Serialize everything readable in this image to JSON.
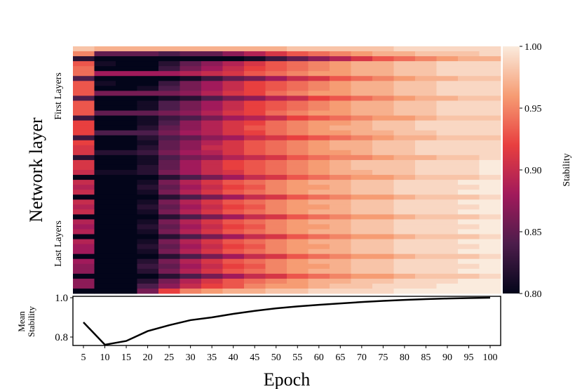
{
  "chart_data": [
    {
      "type": "heatmap",
      "ylabel": "Network layer",
      "y_group_labels": [
        "First Layers",
        "Last Layers"
      ],
      "colorbar": {
        "label": "Stability",
        "range": [
          0.8,
          1.0
        ],
        "ticks": [
          "0.80",
          "0.85",
          "0.90",
          "0.95",
          "1.00"
        ]
      },
      "colormap_stops": [
        "#03051a",
        "#4c1d4b",
        "#a11a5b",
        "#e83f3f",
        "#f69c73",
        "#faebdd"
      ],
      "x": [
        5,
        10,
        15,
        20,
        25,
        30,
        35,
        40,
        45,
        50,
        55,
        60,
        65,
        70,
        75,
        80,
        85,
        90,
        95,
        100
      ],
      "z": [
        [
          0.98,
          0.97,
          0.97,
          0.97,
          0.97,
          0.97,
          0.97,
          0.97,
          0.97,
          0.97,
          0.98,
          0.98,
          0.98,
          0.98,
          0.98,
          0.99,
          0.99,
          0.99,
          0.99,
          0.99
        ],
        [
          0.95,
          0.85,
          0.85,
          0.85,
          0.84,
          0.85,
          0.85,
          0.87,
          0.89,
          0.91,
          0.93,
          0.94,
          0.95,
          0.96,
          0.97,
          0.97,
          0.98,
          0.98,
          0.98,
          0.99
        ],
        [
          0.82,
          0.8,
          0.8,
          0.8,
          0.8,
          0.8,
          0.8,
          0.8,
          0.81,
          0.83,
          0.85,
          0.87,
          0.89,
          0.91,
          0.93,
          0.94,
          0.95,
          0.96,
          0.97,
          0.97
        ],
        [
          0.93,
          0.81,
          0.8,
          0.8,
          0.82,
          0.85,
          0.87,
          0.89,
          0.91,
          0.93,
          0.94,
          0.95,
          0.96,
          0.97,
          0.97,
          0.98,
          0.98,
          0.99,
          0.99,
          0.99
        ],
        [
          0.94,
          0.8,
          0.8,
          0.8,
          0.83,
          0.86,
          0.88,
          0.9,
          0.92,
          0.93,
          0.94,
          0.95,
          0.96,
          0.97,
          0.97,
          0.98,
          0.98,
          0.99,
          0.99,
          0.99
        ],
        [
          0.94,
          0.88,
          0.88,
          0.88,
          0.88,
          0.89,
          0.9,
          0.91,
          0.93,
          0.94,
          0.95,
          0.96,
          0.96,
          0.97,
          0.97,
          0.98,
          0.98,
          0.99,
          0.99,
          0.99
        ],
        [
          0.84,
          0.8,
          0.8,
          0.8,
          0.8,
          0.81,
          0.83,
          0.85,
          0.86,
          0.88,
          0.9,
          0.91,
          0.93,
          0.94,
          0.95,
          0.96,
          0.97,
          0.97,
          0.98,
          0.98
        ],
        [
          0.93,
          0.81,
          0.8,
          0.8,
          0.83,
          0.86,
          0.88,
          0.9,
          0.92,
          0.93,
          0.94,
          0.95,
          0.96,
          0.97,
          0.97,
          0.98,
          0.98,
          0.99,
          0.99,
          0.99
        ],
        [
          0.93,
          0.8,
          0.8,
          0.81,
          0.84,
          0.86,
          0.88,
          0.9,
          0.92,
          0.93,
          0.94,
          0.95,
          0.96,
          0.97,
          0.97,
          0.98,
          0.98,
          0.99,
          0.99,
          0.99
        ],
        [
          0.93,
          0.86,
          0.86,
          0.86,
          0.86,
          0.87,
          0.89,
          0.91,
          0.92,
          0.94,
          0.95,
          0.96,
          0.96,
          0.97,
          0.97,
          0.98,
          0.98,
          0.99,
          0.99,
          0.99
        ],
        [
          0.84,
          0.8,
          0.8,
          0.8,
          0.81,
          0.82,
          0.84,
          0.86,
          0.87,
          0.89,
          0.9,
          0.92,
          0.93,
          0.94,
          0.95,
          0.96,
          0.97,
          0.97,
          0.98,
          0.98
        ],
        [
          0.93,
          0.8,
          0.8,
          0.81,
          0.84,
          0.86,
          0.88,
          0.9,
          0.92,
          0.93,
          0.94,
          0.95,
          0.96,
          0.97,
          0.97,
          0.98,
          0.98,
          0.99,
          0.99,
          0.99
        ],
        [
          0.93,
          0.8,
          0.8,
          0.81,
          0.84,
          0.86,
          0.88,
          0.9,
          0.92,
          0.93,
          0.94,
          0.95,
          0.96,
          0.97,
          0.97,
          0.98,
          0.98,
          0.99,
          0.99,
          0.99
        ],
        [
          0.93,
          0.85,
          0.85,
          0.85,
          0.86,
          0.87,
          0.89,
          0.91,
          0.92,
          0.94,
          0.95,
          0.96,
          0.96,
          0.97,
          0.97,
          0.98,
          0.98,
          0.99,
          0.99,
          0.99
        ],
        [
          0.83,
          0.8,
          0.8,
          0.81,
          0.83,
          0.84,
          0.86,
          0.88,
          0.89,
          0.9,
          0.92,
          0.93,
          0.94,
          0.95,
          0.96,
          0.96,
          0.97,
          0.98,
          0.98,
          0.98
        ],
        [
          0.92,
          0.8,
          0.8,
          0.81,
          0.84,
          0.87,
          0.89,
          0.91,
          0.92,
          0.94,
          0.95,
          0.96,
          0.96,
          0.97,
          0.98,
          0.98,
          0.99,
          0.99,
          0.99,
          0.99
        ],
        [
          0.92,
          0.8,
          0.8,
          0.82,
          0.85,
          0.87,
          0.89,
          0.91,
          0.93,
          0.94,
          0.95,
          0.96,
          0.97,
          0.97,
          0.98,
          0.98,
          0.99,
          0.99,
          0.99,
          0.99
        ],
        [
          0.92,
          0.84,
          0.84,
          0.84,
          0.86,
          0.88,
          0.89,
          0.91,
          0.92,
          0.94,
          0.95,
          0.96,
          0.96,
          0.97,
          0.97,
          0.98,
          0.98,
          0.99,
          0.99,
          0.99
        ],
        [
          0.83,
          0.8,
          0.8,
          0.82,
          0.84,
          0.85,
          0.87,
          0.88,
          0.9,
          0.91,
          0.92,
          0.93,
          0.94,
          0.95,
          0.96,
          0.97,
          0.97,
          0.98,
          0.98,
          0.98
        ],
        [
          0.92,
          0.8,
          0.8,
          0.81,
          0.85,
          0.87,
          0.89,
          0.91,
          0.93,
          0.94,
          0.95,
          0.96,
          0.97,
          0.97,
          0.98,
          0.98,
          0.99,
          0.99,
          0.99,
          0.99
        ],
        [
          0.91,
          0.8,
          0.8,
          0.82,
          0.85,
          0.87,
          0.9,
          0.91,
          0.93,
          0.94,
          0.95,
          0.96,
          0.97,
          0.97,
          0.98,
          0.98,
          0.99,
          0.99,
          0.99,
          0.99
        ],
        [
          0.91,
          0.82,
          0.82,
          0.83,
          0.86,
          0.88,
          0.89,
          0.91,
          0.93,
          0.94,
          0.95,
          0.96,
          0.96,
          0.97,
          0.98,
          0.98,
          0.99,
          0.99,
          0.99,
          0.99
        ],
        [
          0.82,
          0.8,
          0.8,
          0.81,
          0.84,
          0.86,
          0.87,
          0.89,
          0.9,
          0.91,
          0.93,
          0.94,
          0.95,
          0.95,
          0.96,
          0.97,
          0.97,
          0.98,
          0.98,
          0.99
        ],
        [
          0.91,
          0.8,
          0.8,
          0.81,
          0.85,
          0.88,
          0.9,
          0.92,
          0.93,
          0.94,
          0.95,
          0.96,
          0.97,
          0.98,
          0.98,
          0.98,
          0.99,
          0.99,
          0.99,
          1.0
        ],
        [
          0.91,
          0.8,
          0.8,
          0.82,
          0.85,
          0.88,
          0.9,
          0.92,
          0.93,
          0.94,
          0.95,
          0.96,
          0.97,
          0.98,
          0.98,
          0.98,
          0.99,
          0.99,
          0.99,
          1.0
        ],
        [
          0.9,
          0.81,
          0.81,
          0.82,
          0.86,
          0.88,
          0.9,
          0.91,
          0.93,
          0.94,
          0.95,
          0.96,
          0.97,
          0.97,
          0.98,
          0.98,
          0.99,
          0.99,
          0.99,
          1.0
        ],
        [
          0.8,
          0.8,
          0.8,
          0.8,
          0.82,
          0.84,
          0.86,
          0.88,
          0.9,
          0.91,
          0.93,
          0.94,
          0.95,
          0.96,
          0.96,
          0.97,
          0.98,
          0.98,
          0.98,
          0.99
        ],
        [
          0.9,
          0.8,
          0.8,
          0.81,
          0.86,
          0.89,
          0.91,
          0.93,
          0.94,
          0.95,
          0.96,
          0.97,
          0.97,
          0.98,
          0.98,
          0.99,
          0.99,
          0.99,
          1.0,
          1.0
        ],
        [
          0.89,
          0.8,
          0.8,
          0.82,
          0.85,
          0.88,
          0.9,
          0.92,
          0.93,
          0.95,
          0.96,
          0.96,
          0.97,
          0.98,
          0.98,
          0.99,
          0.99,
          0.99,
          0.99,
          1.0
        ],
        [
          0.9,
          0.8,
          0.8,
          0.81,
          0.86,
          0.89,
          0.91,
          0.93,
          0.94,
          0.95,
          0.96,
          0.97,
          0.97,
          0.98,
          0.98,
          0.99,
          0.99,
          0.99,
          1.0,
          1.0
        ],
        [
          0.8,
          0.8,
          0.8,
          0.8,
          0.82,
          0.84,
          0.86,
          0.88,
          0.9,
          0.91,
          0.93,
          0.94,
          0.95,
          0.96,
          0.96,
          0.97,
          0.98,
          0.98,
          0.98,
          0.99
        ],
        [
          0.9,
          0.8,
          0.8,
          0.81,
          0.86,
          0.89,
          0.91,
          0.93,
          0.94,
          0.95,
          0.96,
          0.97,
          0.97,
          0.98,
          0.98,
          0.99,
          0.99,
          0.99,
          1.0,
          1.0
        ],
        [
          0.89,
          0.8,
          0.8,
          0.82,
          0.85,
          0.88,
          0.9,
          0.92,
          0.93,
          0.95,
          0.96,
          0.96,
          0.97,
          0.98,
          0.98,
          0.99,
          0.99,
          0.99,
          0.99,
          1.0
        ],
        [
          0.9,
          0.8,
          0.8,
          0.81,
          0.86,
          0.89,
          0.91,
          0.93,
          0.94,
          0.95,
          0.96,
          0.97,
          0.97,
          0.98,
          0.98,
          0.99,
          0.99,
          0.99,
          1.0,
          1.0
        ],
        [
          0.8,
          0.8,
          0.8,
          0.8,
          0.82,
          0.84,
          0.86,
          0.88,
          0.9,
          0.91,
          0.93,
          0.94,
          0.95,
          0.96,
          0.96,
          0.97,
          0.98,
          0.98,
          0.98,
          0.99
        ],
        [
          0.89,
          0.8,
          0.8,
          0.81,
          0.86,
          0.89,
          0.91,
          0.93,
          0.94,
          0.95,
          0.96,
          0.97,
          0.97,
          0.98,
          0.98,
          0.99,
          0.99,
          0.99,
          1.0,
          1.0
        ],
        [
          0.88,
          0.8,
          0.8,
          0.82,
          0.85,
          0.88,
          0.9,
          0.92,
          0.93,
          0.95,
          0.96,
          0.96,
          0.97,
          0.98,
          0.98,
          0.99,
          0.99,
          0.99,
          0.99,
          1.0
        ],
        [
          0.89,
          0.8,
          0.8,
          0.81,
          0.86,
          0.89,
          0.91,
          0.93,
          0.94,
          0.95,
          0.96,
          0.97,
          0.97,
          0.98,
          0.98,
          0.99,
          0.99,
          0.99,
          1.0,
          1.0
        ],
        [
          0.8,
          0.8,
          0.8,
          0.8,
          0.82,
          0.84,
          0.86,
          0.88,
          0.9,
          0.91,
          0.93,
          0.94,
          0.95,
          0.96,
          0.96,
          0.97,
          0.98,
          0.98,
          0.98,
          0.99
        ],
        [
          0.89,
          0.8,
          0.8,
          0.81,
          0.86,
          0.89,
          0.91,
          0.93,
          0.94,
          0.95,
          0.96,
          0.97,
          0.97,
          0.98,
          0.98,
          0.99,
          0.99,
          0.99,
          1.0,
          1.0
        ],
        [
          0.88,
          0.8,
          0.8,
          0.82,
          0.85,
          0.88,
          0.9,
          0.92,
          0.93,
          0.95,
          0.96,
          0.96,
          0.97,
          0.98,
          0.98,
          0.99,
          0.99,
          0.99,
          0.99,
          1.0
        ],
        [
          0.88,
          0.8,
          0.8,
          0.81,
          0.86,
          0.89,
          0.91,
          0.93,
          0.94,
          0.95,
          0.96,
          0.97,
          0.97,
          0.98,
          0.98,
          0.99,
          0.99,
          0.99,
          1.0,
          1.0
        ],
        [
          0.8,
          0.8,
          0.8,
          0.8,
          0.82,
          0.84,
          0.86,
          0.88,
          0.9,
          0.91,
          0.93,
          0.94,
          0.95,
          0.96,
          0.96,
          0.97,
          0.98,
          0.98,
          0.98,
          0.99
        ],
        [
          0.88,
          0.8,
          0.8,
          0.82,
          0.86,
          0.89,
          0.91,
          0.93,
          0.94,
          0.95,
          0.96,
          0.97,
          0.97,
          0.98,
          0.98,
          0.99,
          0.99,
          0.99,
          1.0,
          1.0
        ],
        [
          0.87,
          0.8,
          0.8,
          0.83,
          0.85,
          0.88,
          0.9,
          0.92,
          0.93,
          0.95,
          0.96,
          0.96,
          0.97,
          0.98,
          0.98,
          0.99,
          0.99,
          0.99,
          0.99,
          1.0
        ],
        [
          0.87,
          0.8,
          0.8,
          0.82,
          0.86,
          0.89,
          0.91,
          0.93,
          0.94,
          0.95,
          0.96,
          0.97,
          0.97,
          0.98,
          0.98,
          0.99,
          0.99,
          0.99,
          1.0,
          1.0
        ],
        [
          0.8,
          0.8,
          0.8,
          0.8,
          0.82,
          0.84,
          0.86,
          0.88,
          0.9,
          0.91,
          0.93,
          0.94,
          0.95,
          0.96,
          0.96,
          0.97,
          0.98,
          0.98,
          0.98,
          0.99
        ],
        [
          0.87,
          0.8,
          0.8,
          0.82,
          0.86,
          0.89,
          0.91,
          0.93,
          0.94,
          0.95,
          0.96,
          0.97,
          0.97,
          0.98,
          0.98,
          0.99,
          0.99,
          0.99,
          1.0,
          1.0
        ],
        [
          0.87,
          0.8,
          0.8,
          0.84,
          0.87,
          0.9,
          0.92,
          0.93,
          0.95,
          0.96,
          0.96,
          0.97,
          0.98,
          0.98,
          0.99,
          0.99,
          0.99,
          1.0,
          1.0,
          1.0
        ],
        [
          0.8,
          0.8,
          0.8,
          0.86,
          0.92,
          0.95,
          0.96,
          0.97,
          0.97,
          0.98,
          0.98,
          0.99,
          0.99,
          0.99,
          0.99,
          1.0,
          1.0,
          1.0,
          1.0,
          1.0
        ]
      ]
    },
    {
      "type": "line",
      "xlabel": "Epoch",
      "ylabel": "Mean Stability",
      "ylabel_lines": [
        "Mean",
        "Stability"
      ],
      "x": [
        5,
        10,
        15,
        20,
        25,
        30,
        35,
        40,
        45,
        50,
        55,
        60,
        65,
        70,
        75,
        80,
        85,
        90,
        95,
        100
      ],
      "xtick_labels": [
        "5",
        "10",
        "15",
        "20",
        "25",
        "30",
        "35",
        "40",
        "45",
        "50",
        "55",
        "60",
        "65",
        "70",
        "75",
        "80",
        "85",
        "90",
        "95",
        "100"
      ],
      "y": [
        0.875,
        0.761,
        0.78,
        0.83,
        0.86,
        0.886,
        0.9,
        0.918,
        0.933,
        0.946,
        0.956,
        0.964,
        0.971,
        0.978,
        0.984,
        0.989,
        0.993,
        0.996,
        0.998,
        1.0
      ],
      "ylim": [
        0.755,
        1.0
      ],
      "ytick_values": [
        0.8,
        1.0
      ],
      "ytick_labels": [
        "0.8",
        "1.0"
      ],
      "line_color": "#000000"
    }
  ]
}
